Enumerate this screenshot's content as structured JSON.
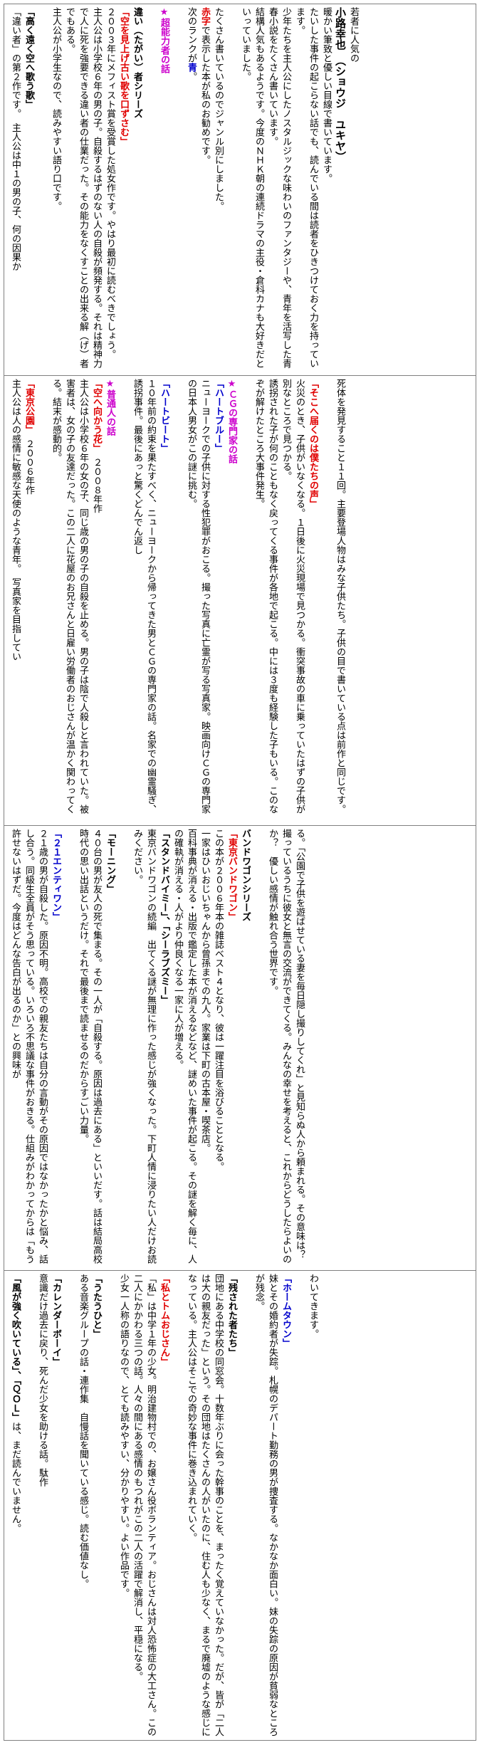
{
  "colors": {
    "magenta": "#cc00cc",
    "red": "#e00000",
    "blue": "#0000cc",
    "border": "#808080"
  },
  "block1": {
    "intro": "若者に人気の",
    "author": "小路幸也　（ショウジ　ユキヤ）",
    "p1": "暖かい筆致と優しい目線で書いています。",
    "p2": "たいした事件の起こらない話でも、読んでいる間は読者をひきつけておく力を持っています。",
    "p3": "少年たちを主人公にしたノスタルジックな味わいのファンタジーや、青年を活写した青春小説をたくさん書いています。",
    "p4": "結構人気もあるようです。今度のＮＨＫ朝の連続ドラマの主役・倉科カナも大好きだといっていました。",
    "p5": "たくさん書いているのでジャンル別にしました。",
    "p6_red": "赤字",
    "p6": "で表示した本が私のお勧めです。",
    "p7": "次のランクが",
    "p7_blue": "青",
    "p7_end": "。",
    "section": "★超能力者の話",
    "s1_title": "違い（たがい）者シリーズ",
    "s1_book": "「空を見上げ古い歌を口ずさむ」",
    "s1_text": "２００３年にメフィスト賞を受賞した処女作です。やはり最初に読むべきでしょう。",
    "s1_text2": "主人公は小学校６年の男の子。自殺するはずのない人の自殺が頻発する。それは精神力で人に死を強要できる違い者の仕業だった。その能力をなくすことの出来る解（げ）者でもある。",
    "s1_text3": "主人公が小学生なので、読みやすい語り口です。",
    "s2_book": "「高く遠く空へ歌う歌」",
    "s2_text": "「違い者」の第２作です。　主人公は中１の男の子、何の因果か"
  },
  "block2": {
    "p1": "死体を発見すること１１回。主要登場人物はみな子供たち。子供の目で書いている点は前作と同じです。",
    "book1": "「そこへ届くのは僕たちの声」",
    "b1_text": "火災のとき、子供がいなくなる。１日後に火災現場で見つかる。衝突事故の車に乗っていたはずの子供が別なところで見つかる。",
    "b1_text2": "誘拐された子が何のこともなく戻ってくる事件が各地で起こる。中には３度も経験した子もいる。このなぞが解けたところ大事件発生。",
    "section": "★ＣＧの専門家の話",
    "book2": "「ハートブルー」",
    "b2_text": "ニューヨークでの子供に対する性犯罪がおこる。撮った写真に亡霊が写る写真家。映画向けＣＧの専門家の日本人男女がこの謎に挑む。",
    "book3": "「ハートビート」",
    "b3_text": "１０年前の約束を果たすべく、ニューヨークから帰ってきた男とＣＧの専門家の話。名家での幽霊騒ぎ、誘拐事件。最後にあっと驚くどんでん返し",
    "section2": "★普通人の話",
    "book4": "「空へ向かう花」",
    "b4_year": "２００８年作",
    "b4_text": "主人公は小学校６年の女の子、同じ歳の男の子の自殺を止める。男の子は陰で人殺しと言われていた。被害者は、女の子の友達だった。この二人に花屋のお兄さんと日雇い労働者のおじさんが温かく関わってくる。結末が感動的。",
    "book5": "「東京公園」",
    "b5_year": "２００６年作",
    "b5_text": "主人公は人の感情に敏感な天使のような青年。　写真家を目指してい"
  },
  "block3": {
    "p1": "る。「公園で子供を遊ばせている妻を毎日隠し撮りしてくれ」と見知らぬ人から頼まれる。その意味は？",
    "p2": "撮っているうちに彼女と無言の交流ができてくる。みんなの幸せを考えると、これからどうしたらよいのか？　優しい感情が触れ合う世界です。",
    "series": "バンドワゴンシリーズ",
    "book1": "「東京バンドワゴン」",
    "b1_text": "この本が２００６年本の雑誌ベスト４となり、彼は一躍注目を浴びることとなる。",
    "b1_text2": "一家はひいおじいちゃんから曾孫までの九人。家業は下町の古本屋・喫茶店。",
    "b1_text3": "百科事典が消える・出版で鑑定した本が消えるなどなど、謎めいた事件が起こる。その謎を解く毎に、人の確執が消える・人がより仲良くなる一家に人が増える。",
    "book2": "「スタンドバイミー」、「シーラブズミー」",
    "b2_text": "東京バンドワゴンの続編　出てくる謎が無理に作った感じが強くなった。下町人情に浸りたい人だけお読みください。",
    "book3": "「モーニング」",
    "b3_text": "４０台の男が友人の死で集まる。その一人が「自殺する。原因は過去にある」といいだす。話は結局高校時代の思い出話というだけ。それで最後まで読ませるのだからすごい力量。",
    "book4": "「２１エンティワン」",
    "b4_text": "２１歳の男が自殺した。原因不明。高校での親友たちは自分の言動がその原因ではなかったかと悩み、話し合う。同級生全員がそう思っている。いろいろ不思議な事件がおきる。仕組みがわかってからは「もう許せないはずだ。今度はどんな告白が出るのか」との興味が"
  },
  "block4": {
    "p1": "わいてきます。",
    "book1": "「ホームタウン」",
    "b1_text": "妹とその婚約者が失踪。札幌のデパート勤務の男が捜査する。なかなか面白い。妹の失踪の原因が貧弱なところが残念。",
    "book2": "「残された者たち」",
    "b2_text": "団地にある中学校の同窓会。十数年ぶりに会った幹事のことを、まったく覚えていなかった。だが、皆が「二人は大の親友だった」という。その団地はたくさんの人がいたのに、住む人も少なく、まるで廃墟のような感じになっている。主人公はそこでの奇妙な事件に巻き込まれていく。",
    "book3": "「私とトムおじさん」",
    "b3_text": "「私」は中学１年の少女。明治建物村での、お嬢さん役ボランティア。おじさんは対人恐怖症の大工さん。この二人にかかわる三つの話。人々の間にある感情のもつれがこの二人の活躍で解消し、平穏になる。",
    "b3_text2": "少女一人称の語りなので、とても読みやすい、分かりやすい。よい作品です。",
    "book4": "「うたうひと」",
    "b4_text": "ある音楽グループの話・連作集　自慢話を聞いている感じ。読む価値なし。",
    "book5": "「カレンダーボーイ」",
    "b5_text": "意識だけ過去に戻り、死んだ少女を助ける話。駄作",
    "book6": "「風が強く吹いている」",
    "b6_mid": "、「ＱＯＬ」",
    "b6_text": "は、まだ読んでいません。"
  }
}
